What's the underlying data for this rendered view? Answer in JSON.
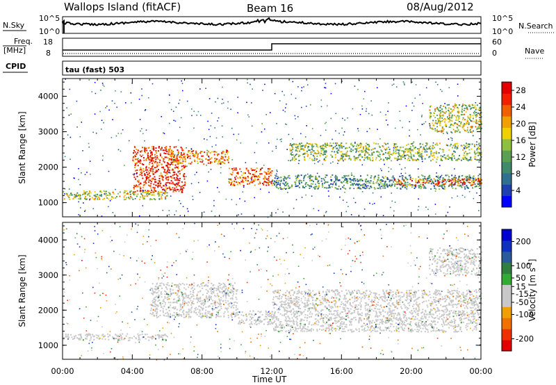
{
  "header": {
    "station": "Wallops Island (fitACF)",
    "beam": "Beam 16",
    "date": "08/Aug/2012"
  },
  "top_panel": {
    "nsky_label": "N.Sky",
    "nsky_ticks": [
      "10^5",
      "10^0"
    ],
    "nsearch_label": "N.Search",
    "nsearch_ticks": [
      "10^5",
      "10^0"
    ],
    "freq_label": "Freq.",
    "freq_unit": "[MHz]",
    "freq_ticks": [
      "18",
      "8"
    ],
    "nave_label": "Nave",
    "nave_ticks": [
      "60",
      "0"
    ],
    "cpid_label": "CPID",
    "cpid_value": "tau (fast) 503"
  },
  "colors": {
    "power_scale": [
      "#0000ff",
      "#1f3fb0",
      "#2f6f8f",
      "#3f8a6a",
      "#5aa050",
      "#8fbf3f",
      "#f0d000",
      "#f0a000",
      "#f06000",
      "#f02000",
      "#e00000"
    ],
    "velocity_scale": [
      "#e00000",
      "#f03000",
      "#f07000",
      "#f0a000",
      "#c8c8c8",
      "#c8c8c8",
      "#33aa33",
      "#2f7f3f",
      "#2a5a9a",
      "#1030c0",
      "#0000d0"
    ]
  },
  "chart_data": [
    {
      "type": "heatmap",
      "name": "power",
      "ylabel": "Slant Range [km]",
      "y_ticks": [
        "1000",
        "2000",
        "3000",
        "4000"
      ],
      "ylim": [
        600,
        4500
      ],
      "xlabel": "",
      "x_ticks": [
        "00:00",
        "04:00",
        "08:00",
        "12:00",
        "16:00",
        "20:00",
        "00:00"
      ],
      "xlim_hours": [
        0,
        24
      ],
      "colorbar": {
        "label": "Power [dB]",
        "ticks": [
          "4",
          "8",
          "12",
          "16",
          "20",
          "24",
          "28"
        ],
        "range": [
          0,
          30
        ]
      },
      "features": [
        {
          "t0": 0,
          "t1": 6,
          "r0": 1100,
          "r1": 1350,
          "level": 16
        },
        {
          "t0": 4,
          "t1": 7,
          "r0": 1300,
          "r1": 2600,
          "level": 26
        },
        {
          "t0": 6,
          "t1": 9.5,
          "r0": 2100,
          "r1": 2500,
          "level": 22
        },
        {
          "t0": 9.5,
          "t1": 12,
          "r0": 1500,
          "r1": 2000,
          "level": 24
        },
        {
          "t0": 12,
          "t1": 24,
          "r0": 1400,
          "r1": 1800,
          "level": 10
        },
        {
          "t0": 13,
          "t1": 24,
          "r0": 2200,
          "r1": 2700,
          "level": 14
        },
        {
          "t0": 19,
          "t1": 24,
          "r0": 1500,
          "r1": 1700,
          "level": 24
        },
        {
          "t0": 21,
          "t1": 24,
          "r0": 3000,
          "r1": 3800,
          "level": 16
        }
      ]
    },
    {
      "type": "heatmap",
      "name": "velocity",
      "ylabel": "Slant Range [km]",
      "y_ticks": [
        "1000",
        "2000",
        "3000",
        "4000"
      ],
      "ylim": [
        600,
        4500
      ],
      "xlabel": "Time UT",
      "x_ticks": [
        "00:00",
        "04:00",
        "08:00",
        "12:00",
        "16:00",
        "20:00",
        "00:00"
      ],
      "xlim_hours": [
        0,
        24
      ],
      "colorbar": {
        "label": "Velocity [m s",
        "label_sup": "-1",
        "label_end": "]",
        "ticks": [
          "200",
          "100",
          "50",
          "15",
          "-15",
          "-50",
          "-100",
          "-200"
        ],
        "range": [
          -250,
          250
        ]
      },
      "features": [
        {
          "t0": 0,
          "t1": 6,
          "r0": 1150,
          "r1": 1350,
          "level": 0
        },
        {
          "t0": 5,
          "t1": 10,
          "r0": 1800,
          "r1": 2800,
          "level": 5
        },
        {
          "t0": 10,
          "t1": 12,
          "r0": 1600,
          "r1": 2000,
          "level": 0
        },
        {
          "t0": 12,
          "t1": 24,
          "r0": 1400,
          "r1": 2600,
          "level": 0
        },
        {
          "t0": 21,
          "t1": 24,
          "r0": 3000,
          "r1": 3800,
          "level": 0
        }
      ]
    }
  ]
}
